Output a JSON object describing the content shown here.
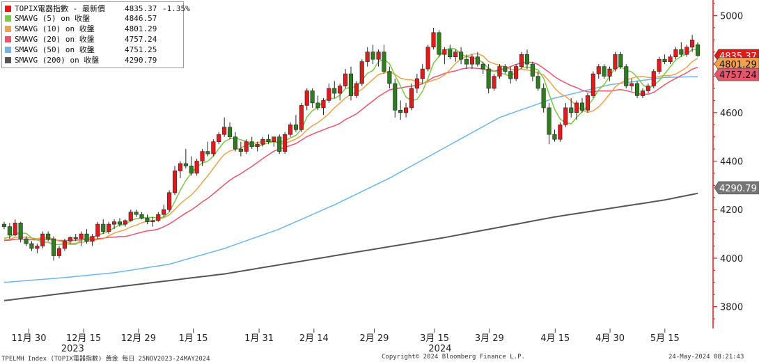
{
  "chart_data": {
    "type": "candlestick",
    "title": "TOPIX電器指數 - 最新價",
    "ylim": [
      3710,
      5050
    ],
    "yticks": [
      "5000",
      "4800",
      "4600",
      "4400",
      "4200",
      "4000",
      "3800"
    ],
    "grid": false,
    "legend_position": "top-left",
    "x_labels": [
      {
        "label": "11月 30",
        "week": 1
      },
      {
        "label": "12月 15",
        "week": 3
      },
      {
        "label": "12月 29",
        "week": 5
      },
      {
        "label": "1月 15",
        "week": 7
      },
      {
        "label": "1月 31",
        "week": 9.4
      },
      {
        "label": "2月 14",
        "week": 11.4
      },
      {
        "label": "2月 29",
        "week": 13.6
      },
      {
        "label": "3月 15",
        "week": 15.8
      },
      {
        "label": "3月 29",
        "week": 17.8
      },
      {
        "label": "4月 15",
        "week": 20.2
      },
      {
        "label": "4月 30",
        "week": 22.2
      },
      {
        "label": "5月 15",
        "week": 24.2
      }
    ],
    "year_labels": [
      {
        "label": "2023",
        "week": 2.6
      },
      {
        "label": "2024",
        "week": 16.0
      }
    ],
    "ohlc": [
      [
        4140,
        4150,
        4120,
        4130
      ],
      [
        4130,
        4145,
        4080,
        4095
      ],
      [
        4095,
        4160,
        4090,
        4145
      ],
      [
        4145,
        4150,
        4065,
        4080
      ],
      [
        4080,
        4090,
        4050,
        4060
      ],
      [
        4060,
        4070,
        4030,
        4040
      ],
      [
        4040,
        4060,
        4020,
        4050
      ],
      [
        4050,
        4110,
        4040,
        4100
      ],
      [
        4100,
        4110,
        4070,
        4080
      ],
      [
        4080,
        4090,
        3990,
        4010
      ],
      [
        4010,
        4050,
        4000,
        4040
      ],
      [
        4040,
        4080,
        4030,
        4070
      ],
      [
        4070,
        4090,
        4060,
        4085
      ],
      [
        4085,
        4100,
        4070,
        4080
      ],
      [
        4080,
        4110,
        4050,
        4100
      ],
      [
        4100,
        4120,
        4060,
        4070
      ],
      [
        4070,
        4100,
        4050,
        4090
      ],
      [
        4090,
        4150,
        4080,
        4140
      ],
      [
        4140,
        4160,
        4100,
        4110
      ],
      [
        4110,
        4150,
        4100,
        4140
      ],
      [
        4140,
        4160,
        4120,
        4150
      ],
      [
        4150,
        4165,
        4130,
        4140
      ],
      [
        4140,
        4160,
        4130,
        4155
      ],
      [
        4155,
        4200,
        4150,
        4190
      ],
      [
        4190,
        4200,
        4170,
        4180
      ],
      [
        4180,
        4190,
        4160,
        4165
      ],
      [
        4165,
        4180,
        4140,
        4150
      ],
      [
        4150,
        4170,
        4130,
        4155
      ],
      [
        4155,
        4190,
        4150,
        4180
      ],
      [
        4180,
        4220,
        4170,
        4200
      ],
      [
        4200,
        4280,
        4190,
        4270
      ],
      [
        4270,
        4380,
        4260,
        4360
      ],
      [
        4360,
        4400,
        4330,
        4390
      ],
      [
        4390,
        4450,
        4370,
        4380
      ],
      [
        4380,
        4420,
        4340,
        4350
      ],
      [
        4350,
        4410,
        4340,
        4400
      ],
      [
        4400,
        4450,
        4380,
        4440
      ],
      [
        4440,
        4480,
        4420,
        4430
      ],
      [
        4430,
        4490,
        4420,
        4480
      ],
      [
        4480,
        4520,
        4470,
        4510
      ],
      [
        4510,
        4580,
        4500,
        4540
      ],
      [
        4540,
        4560,
        4490,
        4500
      ],
      [
        4500,
        4520,
        4440,
        4450
      ],
      [
        4450,
        4480,
        4420,
        4440
      ],
      [
        4440,
        4490,
        4430,
        4480
      ],
      [
        4480,
        4500,
        4450,
        4460
      ],
      [
        4460,
        4480,
        4440,
        4470
      ],
      [
        4470,
        4500,
        4460,
        4490
      ],
      [
        4490,
        4510,
        4470,
        4480
      ],
      [
        4480,
        4500,
        4460,
        4500
      ],
      [
        4500,
        4510,
        4430,
        4440
      ],
      [
        4440,
        4520,
        4430,
        4510
      ],
      [
        4510,
        4560,
        4500,
        4550
      ],
      [
        4550,
        4590,
        4520,
        4530
      ],
      [
        4530,
        4640,
        4520,
        4630
      ],
      [
        4630,
        4700,
        4610,
        4690
      ],
      [
        4690,
        4700,
        4620,
        4640
      ],
      [
        4640,
        4670,
        4610,
        4620
      ],
      [
        4620,
        4660,
        4590,
        4650
      ],
      [
        4650,
        4720,
        4640,
        4700
      ],
      [
        4700,
        4730,
        4660,
        4680
      ],
      [
        4680,
        4720,
        4650,
        4710
      ],
      [
        4710,
        4780,
        4700,
        4760
      ],
      [
        4760,
        4790,
        4650,
        4670
      ],
      [
        4670,
        4730,
        4660,
        4720
      ],
      [
        4720,
        4820,
        4710,
        4810
      ],
      [
        4810,
        4870,
        4790,
        4850
      ],
      [
        4850,
        4880,
        4800,
        4820
      ],
      [
        4820,
        4860,
        4790,
        4850
      ],
      [
        4850,
        4880,
        4760,
        4770
      ],
      [
        4770,
        4790,
        4700,
        4720
      ],
      [
        4720,
        4740,
        4580,
        4610
      ],
      [
        4610,
        4650,
        4570,
        4600
      ],
      [
        4600,
        4640,
        4580,
        4620
      ],
      [
        4620,
        4720,
        4610,
        4700
      ],
      [
        4700,
        4760,
        4680,
        4740
      ],
      [
        4740,
        4800,
        4720,
        4780
      ],
      [
        4780,
        4880,
        4770,
        4870
      ],
      [
        4870,
        4950,
        4860,
        4930
      ],
      [
        4930,
        4940,
        4830,
        4840
      ],
      [
        4840,
        4870,
        4800,
        4860
      ],
      [
        4860,
        4880,
        4820,
        4830
      ],
      [
        4830,
        4860,
        4810,
        4850
      ],
      [
        4850,
        4870,
        4800,
        4820
      ],
      [
        4820,
        4840,
        4780,
        4800
      ],
      [
        4800,
        4840,
        4780,
        4830
      ],
      [
        4830,
        4850,
        4790,
        4800
      ],
      [
        4800,
        4810,
        4760,
        4780
      ],
      [
        4780,
        4800,
        4680,
        4700
      ],
      [
        4700,
        4760,
        4690,
        4750
      ],
      [
        4750,
        4800,
        4740,
        4790
      ],
      [
        4790,
        4800,
        4760,
        4770
      ],
      [
        4770,
        4790,
        4720,
        4740
      ],
      [
        4740,
        4800,
        4730,
        4790
      ],
      [
        4790,
        4850,
        4780,
        4840
      ],
      [
        4840,
        4860,
        4780,
        4800
      ],
      [
        4800,
        4810,
        4730,
        4750
      ],
      [
        4750,
        4770,
        4690,
        4700
      ],
      [
        4700,
        4720,
        4600,
        4620
      ],
      [
        4620,
        4640,
        4470,
        4510
      ],
      [
        4510,
        4530,
        4480,
        4490
      ],
      [
        4490,
        4560,
        4480,
        4550
      ],
      [
        4550,
        4640,
        4540,
        4620
      ],
      [
        4620,
        4660,
        4580,
        4600
      ],
      [
        4600,
        4650,
        4570,
        4640
      ],
      [
        4640,
        4660,
        4600,
        4610
      ],
      [
        4610,
        4680,
        4600,
        4670
      ],
      [
        4670,
        4770,
        4660,
        4760
      ],
      [
        4760,
        4800,
        4740,
        4790
      ],
      [
        4790,
        4800,
        4740,
        4750
      ],
      [
        4750,
        4790,
        4730,
        4780
      ],
      [
        4780,
        4850,
        4770,
        4840
      ],
      [
        4840,
        4850,
        4780,
        4790
      ],
      [
        4790,
        4800,
        4700,
        4710
      ],
      [
        4710,
        4740,
        4690,
        4720
      ],
      [
        4720,
        4730,
        4660,
        4670
      ],
      [
        4670,
        4700,
        4660,
        4690
      ],
      [
        4690,
        4720,
        4680,
        4710
      ],
      [
        4710,
        4780,
        4700,
        4770
      ],
      [
        4770,
        4830,
        4760,
        4820
      ],
      [
        4820,
        4840,
        4800,
        4810
      ],
      [
        4810,
        4840,
        4800,
        4830
      ],
      [
        4830,
        4870,
        4820,
        4860
      ],
      [
        4860,
        4890,
        4830,
        4840
      ],
      [
        4840,
        4880,
        4830,
        4870
      ],
      [
        4870,
        4920,
        4850,
        4900
      ],
      [
        4880,
        4890,
        4830,
        4835
      ]
    ],
    "series": [
      {
        "name": "SMAVG (5)  on 收盤",
        "value": "4846.57",
        "color": "#7ac943"
      },
      {
        "name": "SMAVG (10)  on 收盤",
        "value": "4801.29",
        "color": "#f2a04a"
      },
      {
        "name": "SMAVG (20)  on 收盤",
        "value": "4757.24",
        "color": "#e8556a"
      },
      {
        "name": "SMAVG (50)  on 收盤",
        "value": "4751.25",
        "color": "#6cb4ee"
      },
      {
        "name": "SMAVG (200)  on 收盤",
        "value": "4290.79",
        "color": "#555555"
      }
    ],
    "sma50_path": [
      [
        0,
        3900
      ],
      [
        10,
        3918
      ],
      [
        20,
        3940
      ],
      [
        30,
        3975
      ],
      [
        40,
        4040
      ],
      [
        50,
        4120
      ],
      [
        60,
        4220
      ],
      [
        70,
        4330
      ],
      [
        80,
        4455
      ],
      [
        90,
        4580
      ],
      [
        100,
        4660
      ],
      [
        110,
        4715
      ],
      [
        120,
        4745
      ],
      [
        131,
        4751
      ]
    ],
    "sma200_path": [
      [
        0,
        3825
      ],
      [
        20,
        3880
      ],
      [
        40,
        3935
      ],
      [
        60,
        4010
      ],
      [
        80,
        4085
      ],
      [
        100,
        4170
      ],
      [
        120,
        4240
      ],
      [
        131,
        4290
      ]
    ],
    "price_tags": [
      {
        "value": "4835.37",
        "y": 4835,
        "bg": "#e01b1b",
        "fg": "#ffffff"
      },
      {
        "value": "4801.29",
        "y": 4801,
        "bg": "#f2a04a",
        "fg": "#111111"
      },
      {
        "value": "4757.24",
        "y": 4757,
        "bg": "#e8556a",
        "fg": "#111111"
      },
      {
        "value": "4290.79",
        "y": 4290,
        "bg": "#777777",
        "fg": "#ffffff"
      }
    ]
  },
  "legend": {
    "main_label": "TOPIX電器指數 - 最新價",
    "main_value": "4835.37",
    "main_change": "-1.35%",
    "main_color": "#e01b1b"
  },
  "footer": {
    "left": "TPELMH Index (TOPIX電器指數) 黃金  每日 25NOV2023-24MAY2024",
    "center": "Copyright© 2024 Bloomberg Finance L.P.",
    "right": "24-May-2024 08:21:43"
  },
  "colors": {
    "up": "#e01b1b",
    "down": "#2e7d1e",
    "axis": "#e01b1b"
  }
}
